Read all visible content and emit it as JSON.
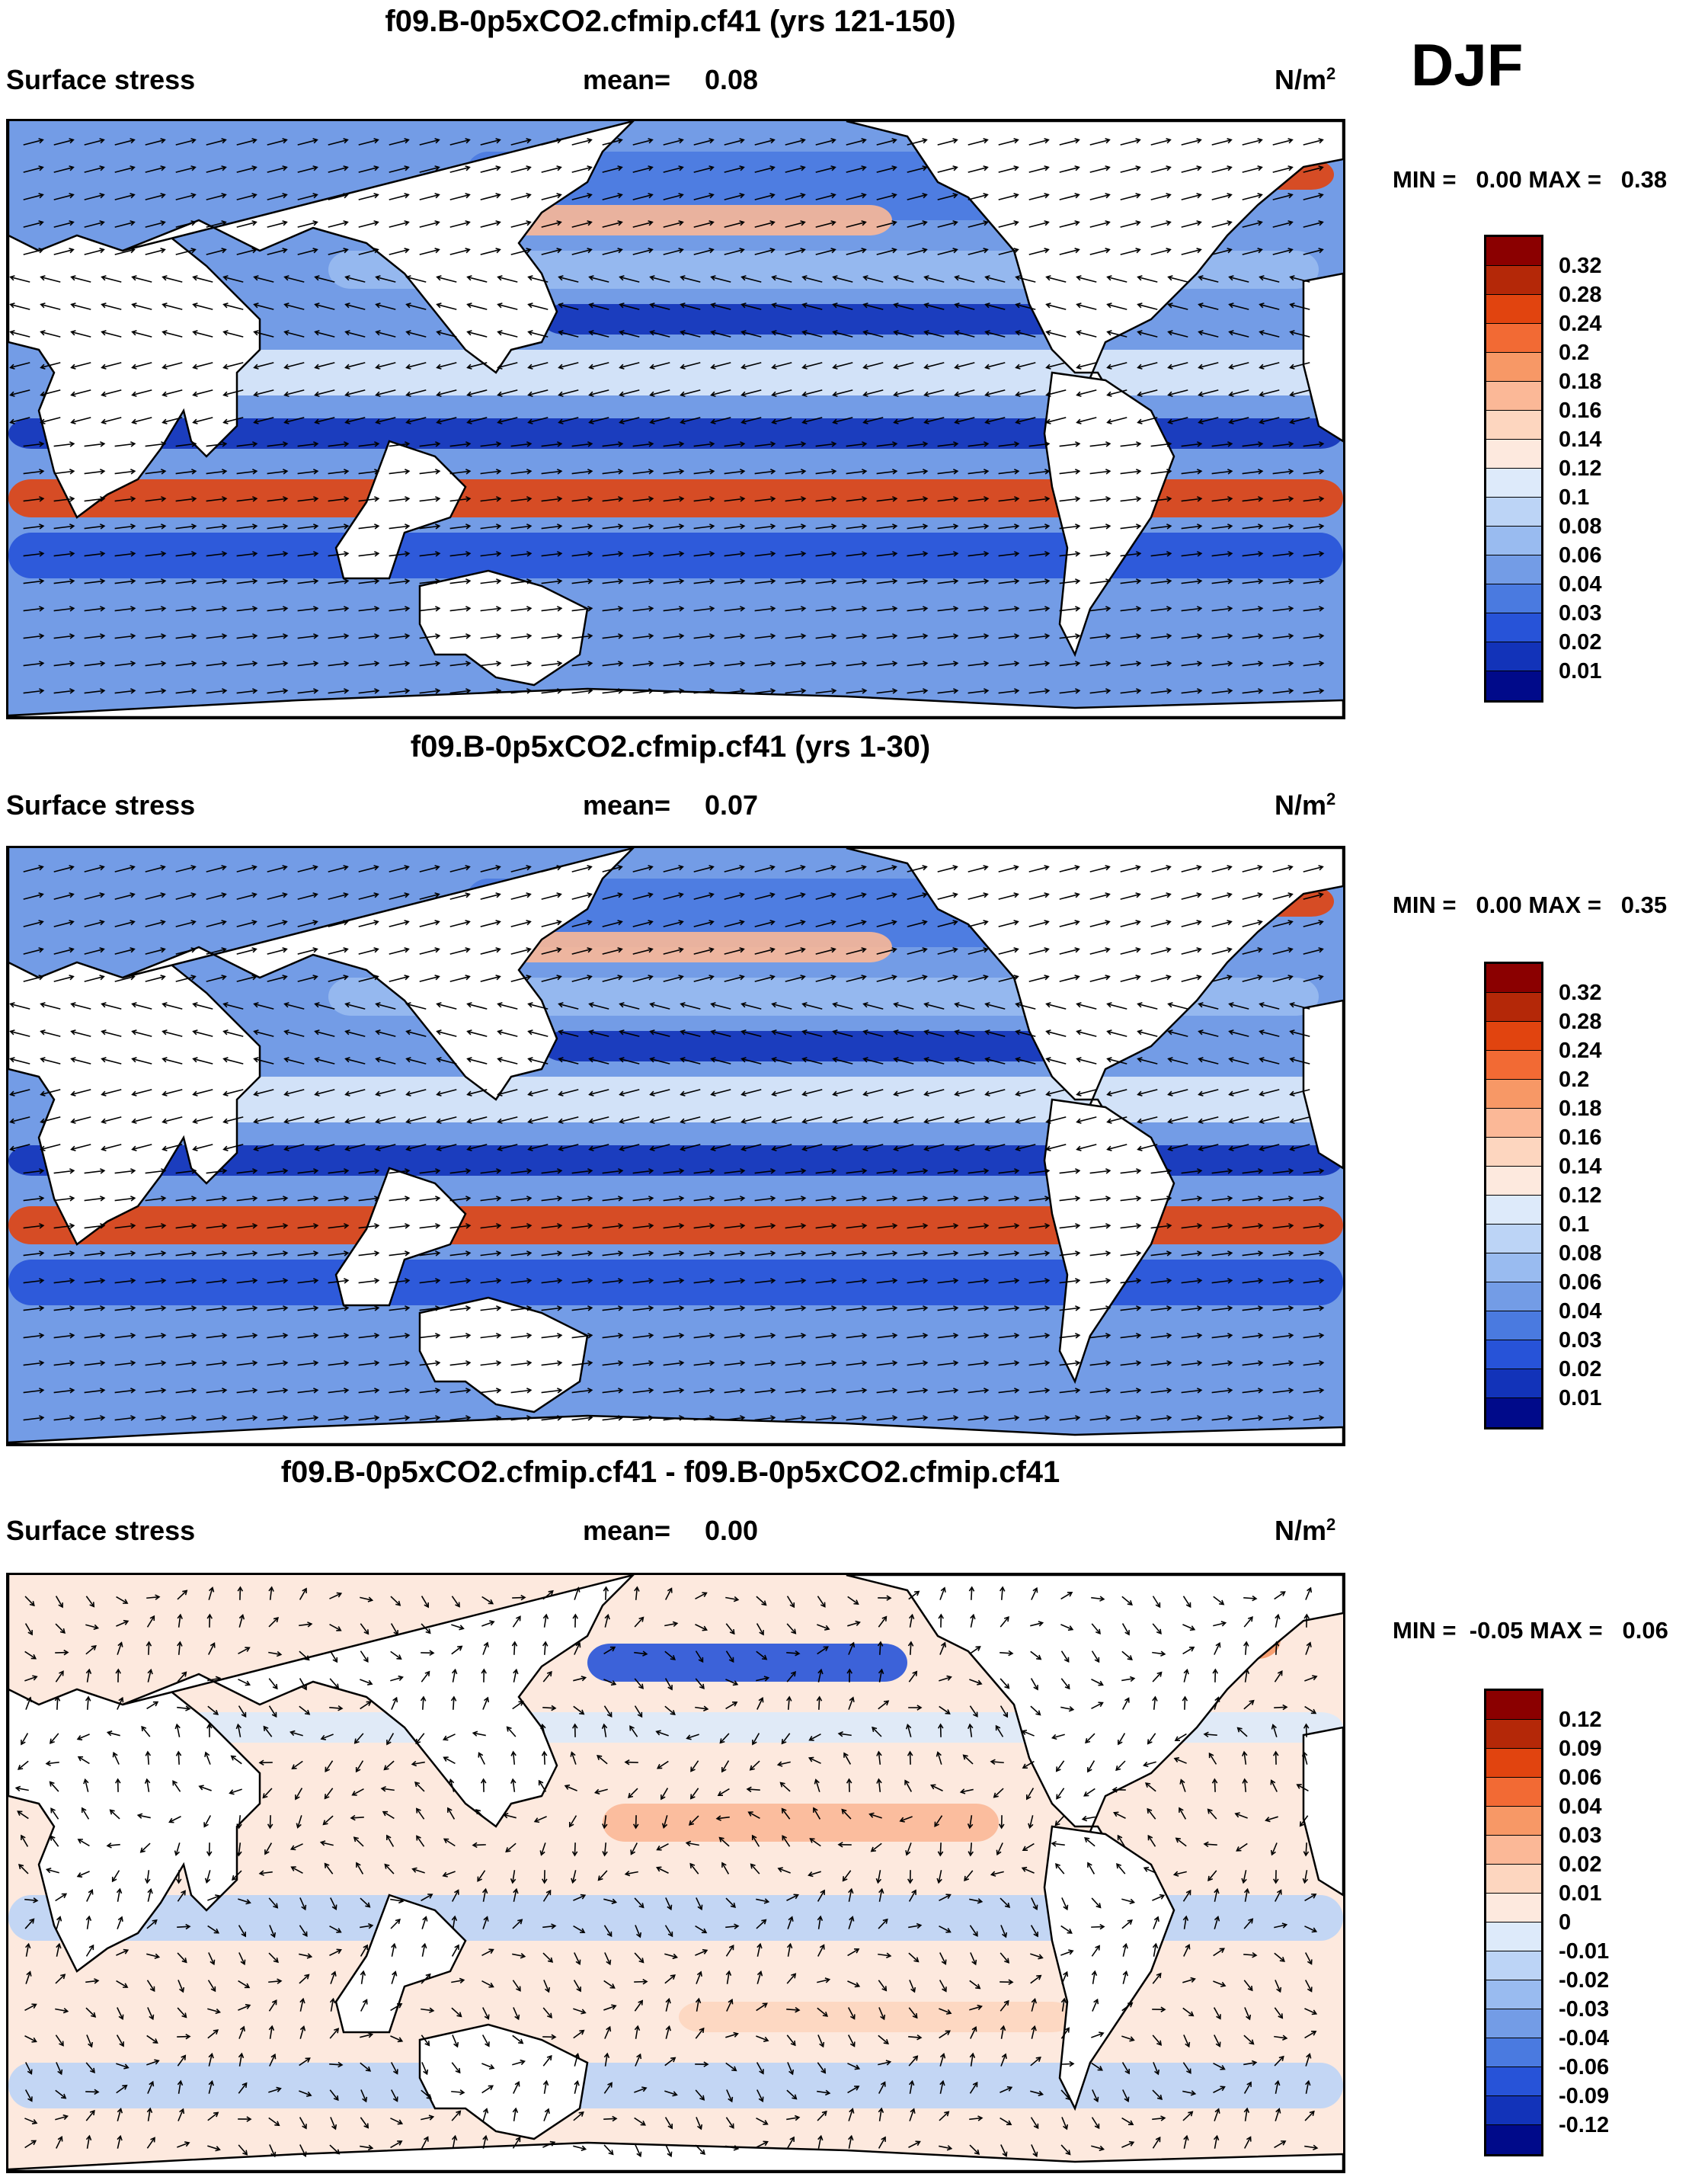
{
  "season": "DJF",
  "field_name": "Surface stress",
  "units": "N/m",
  "units_exp": "2",
  "colorbar_abs": {
    "colors": [
      "#8b0000",
      "#b42808",
      "#e1440f",
      "#f26a34",
      "#f79866",
      "#fbb897",
      "#fdd6bf",
      "#fde9de",
      "#ddeafa",
      "#bcd4f6",
      "#99bbf0",
      "#739ce6",
      "#4a7ae0",
      "#2753d8",
      "#1233b9",
      "#000a8a"
    ],
    "labels": [
      "0.32",
      "0.28",
      "0.24",
      "0.2",
      "0.18",
      "0.16",
      "0.14",
      "0.12",
      "0.1",
      "0.08",
      "0.06",
      "0.04",
      "0.03",
      "0.02",
      "0.01"
    ]
  },
  "colorbar_diff": {
    "colors": [
      "#8b0000",
      "#b42808",
      "#e1440f",
      "#f26a34",
      "#f79866",
      "#fbb897",
      "#fdd6bf",
      "#fde9de",
      "#ddeafa",
      "#bcd4f6",
      "#99bbf0",
      "#739ce6",
      "#4a7ae0",
      "#2753d8",
      "#1233b9",
      "#000a8a"
    ],
    "labels": [
      "0.12",
      "0.09",
      "0.06",
      "0.04",
      "0.03",
      "0.02",
      "0.01",
      "0",
      "-0.01",
      "-0.02",
      "-0.03",
      "-0.04",
      "-0.06",
      "-0.09",
      "-0.12"
    ]
  },
  "panels": [
    {
      "title": "f09.B-0p5xCO2.cfmip.cf41 (yrs 121-150)",
      "mean_label": "mean=",
      "mean": "0.08",
      "minmax": "MIN =   0.00 MAX =   0.38",
      "kind": "abs"
    },
    {
      "title": "f09.B-0p5xCO2.cfmip.cf41 (yrs 1-30)",
      "mean_label": "mean=",
      "mean": "0.07",
      "minmax": "MIN =   0.00 MAX =   0.35",
      "kind": "abs"
    },
    {
      "title": "f09.B-0p5xCO2.cfmip.cf41 - f09.B-0p5xCO2.cfmip.cf41",
      "mean_label": "mean=",
      "mean": "0.00",
      "minmax": "MIN =  -0.05 MAX =   0.06",
      "kind": "diff"
    }
  ]
}
